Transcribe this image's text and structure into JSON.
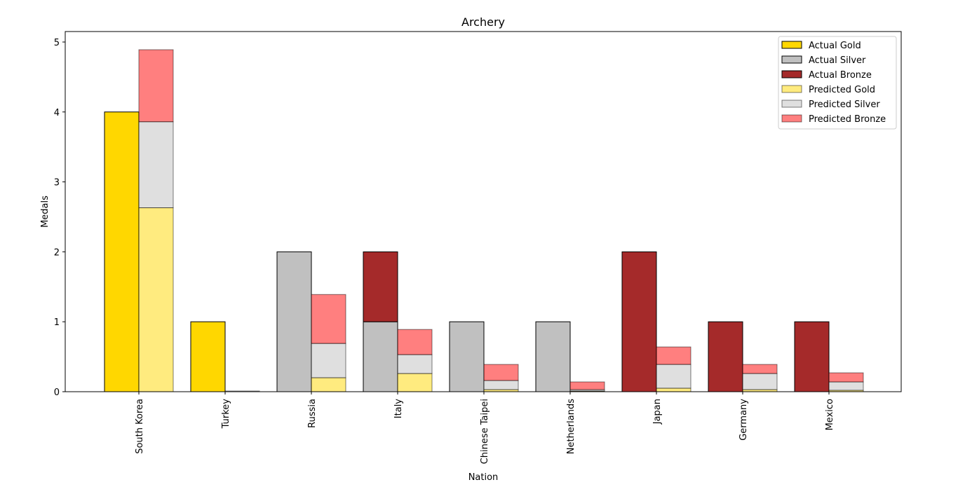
{
  "chart_data": {
    "type": "bar",
    "title": "Archery",
    "xlabel": "Nation",
    "ylabel": "Medals",
    "ylim": [
      0,
      5.15
    ],
    "yticks": [
      0,
      1,
      2,
      3,
      4,
      5
    ],
    "grid": false,
    "legend_position": "top-right",
    "categories": [
      "South Korea",
      "Turkey",
      "Russia",
      "Italy",
      "Chinese Taipei",
      "Netherlands",
      "Japan",
      "Germany",
      "Mexico"
    ],
    "series": [
      {
        "name": "Actual Gold",
        "group": "actual",
        "color": "#ffd700",
        "alpha": 1.0,
        "values": [
          4,
          1,
          0,
          0,
          0,
          0,
          0,
          0,
          0
        ]
      },
      {
        "name": "Actual Silver",
        "group": "actual",
        "color": "#c0c0c0",
        "alpha": 1.0,
        "values": [
          0,
          0,
          2,
          1,
          1,
          1,
          0,
          0,
          0
        ]
      },
      {
        "name": "Actual Bronze",
        "group": "actual",
        "color": "#a52a2a",
        "alpha": 1.0,
        "values": [
          0,
          0,
          0,
          1,
          0,
          0,
          2,
          1,
          1
        ]
      },
      {
        "name": "Predicted Gold",
        "group": "predicted",
        "color": "#ffd700",
        "alpha": 0.5,
        "values": [
          2.63,
          0.0,
          0.2,
          0.26,
          0.03,
          0.01,
          0.05,
          0.03,
          0.02
        ]
      },
      {
        "name": "Predicted Silver",
        "group": "predicted",
        "color": "#c0c0c0",
        "alpha": 0.5,
        "values": [
          1.23,
          0.01,
          0.49,
          0.27,
          0.13,
          0.02,
          0.34,
          0.23,
          0.12
        ]
      },
      {
        "name": "Predicted Bronze",
        "group": "predicted",
        "color": "#ff0000",
        "alpha": 0.5,
        "values": [
          1.03,
          0.0,
          0.7,
          0.36,
          0.23,
          0.11,
          0.25,
          0.13,
          0.13
        ]
      }
    ]
  }
}
